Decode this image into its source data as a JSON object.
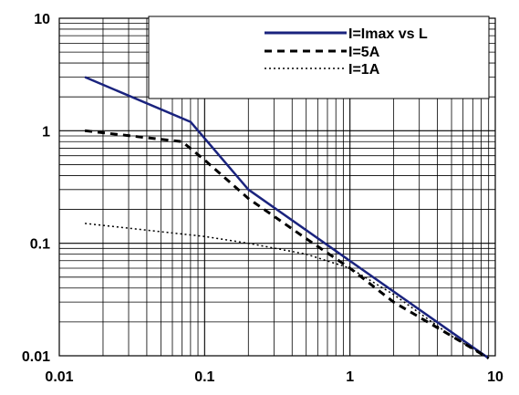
{
  "chart_data": {
    "type": "line",
    "title": "",
    "xlabel": "",
    "ylabel": "",
    "xscale": "log",
    "yscale": "log",
    "xlim": [
      0.01,
      10
    ],
    "ylim": [
      0.01,
      10
    ],
    "grid": true,
    "legend_position": "top-right",
    "x_tick_labels": [
      "0.01",
      "0.1",
      "1",
      "10"
    ],
    "y_tick_labels": [
      "0.01",
      "0.1",
      "1",
      "10"
    ],
    "series": [
      {
        "name": "I=Imax vs L",
        "style": "solid",
        "color": "#1a237e",
        "x": [
          0.015,
          0.08,
          0.2,
          9.0
        ],
        "y": [
          3.0,
          1.2,
          0.3,
          0.0095
        ]
      },
      {
        "name": "I=5A",
        "style": "dashed",
        "color": "#000000",
        "x": [
          0.015,
          0.07,
          0.1,
          0.2,
          0.5,
          1.0,
          2.0,
          5.0,
          9.0
        ],
        "y": [
          1.0,
          0.8,
          0.55,
          0.25,
          0.11,
          0.06,
          0.03,
          0.015,
          0.0095
        ]
      },
      {
        "name": "I=1A",
        "style": "dotted",
        "color": "#000000",
        "x": [
          0.015,
          0.1,
          0.2,
          0.5,
          1.0,
          2.0,
          5.0,
          9.0
        ],
        "y": [
          0.15,
          0.115,
          0.1,
          0.08,
          0.06,
          0.035,
          0.015,
          0.0095
        ]
      }
    ]
  }
}
